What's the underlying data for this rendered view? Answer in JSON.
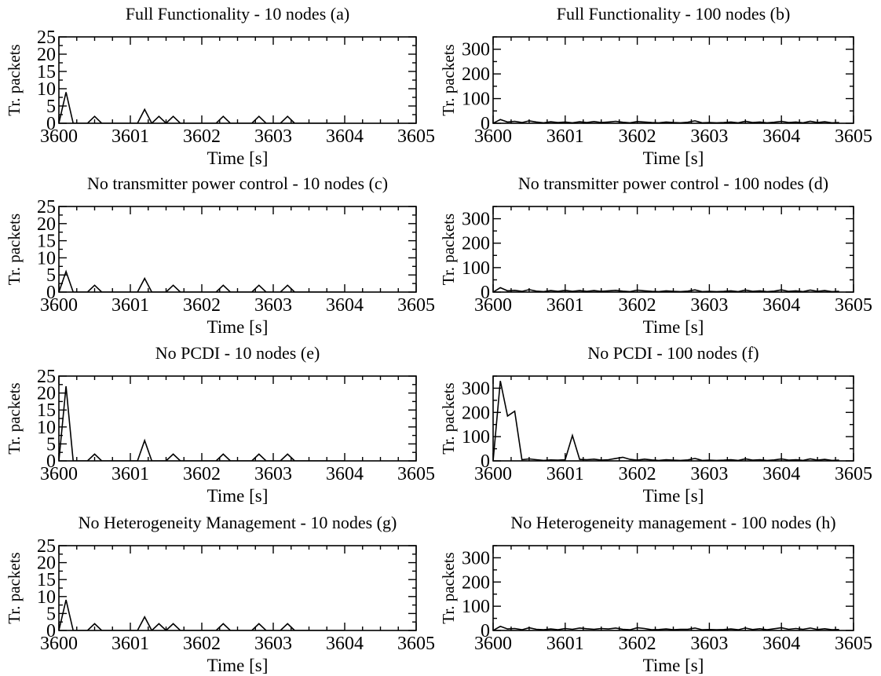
{
  "chart_data": [
    {
      "type": "line",
      "title": "Full Functionality - 10 nodes (a)",
      "xlabel": "Time [s]",
      "ylabel": "Tr. packets",
      "xlim": [
        3600,
        3605
      ],
      "ylim": [
        0,
        25
      ],
      "xticks": [
        3600,
        3601,
        3602,
        3603,
        3604,
        3605
      ],
      "yticks": [
        0,
        5,
        10,
        15,
        20,
        25
      ],
      "x": [
        3600,
        3600.1,
        3600.2,
        3600.4,
        3600.5,
        3600.6,
        3601.1,
        3601.2,
        3601.3,
        3601.4,
        3601.5,
        3601.6,
        3601.7,
        3602.2,
        3602.3,
        3602.4,
        3602.7,
        3602.8,
        3602.9,
        3603.1,
        3603.2,
        3603.3,
        3604
      ],
      "series": [
        {
          "values": [
            0,
            9,
            0,
            0,
            2,
            0,
            0,
            4,
            0,
            2,
            0,
            2,
            0,
            0,
            2,
            0,
            0,
            2,
            0,
            0,
            2,
            0,
            0
          ]
        }
      ]
    },
    {
      "type": "line",
      "title": "Full Functionality - 100 nodes (b)",
      "xlabel": "Time [s]",
      "ylabel": "Tr. packets",
      "xlim": [
        3600,
        3605
      ],
      "ylim": [
        0,
        350
      ],
      "xticks": [
        3600,
        3601,
        3602,
        3603,
        3604,
        3605
      ],
      "yticks": [
        0,
        100,
        200,
        300
      ],
      "x": [
        3600,
        3600.1,
        3600.2,
        3600.3,
        3600.4,
        3600.5,
        3600.6,
        3600.7,
        3600.8,
        3600.9,
        3601,
        3601.1,
        3601.2,
        3601.3,
        3601.4,
        3601.5,
        3601.6,
        3601.7,
        3601.8,
        3601.9,
        3602,
        3602.1,
        3602.2,
        3602.3,
        3602.4,
        3602.5,
        3602.6,
        3602.7,
        3602.8,
        3602.9,
        3603,
        3603.1,
        3603.2,
        3603.3,
        3603.4,
        3603.5,
        3603.6,
        3603.7,
        3603.8,
        3603.9,
        3604,
        3604.1,
        3604.2,
        3604.3,
        3604.4,
        3604.5,
        3604.6,
        3604.7,
        3604.8
      ],
      "series": [
        {
          "values": [
            0,
            15,
            5,
            8,
            3,
            10,
            5,
            2,
            6,
            3,
            5,
            2,
            6,
            3,
            7,
            3,
            5,
            8,
            4,
            2,
            7,
            5,
            3,
            2,
            5,
            3,
            2,
            4,
            10,
            2,
            3,
            2,
            3,
            5,
            2,
            8,
            3,
            5,
            2,
            4,
            8,
            3,
            5,
            2,
            8,
            3,
            6,
            2,
            3
          ]
        }
      ]
    },
    {
      "type": "line",
      "title": "No transmitter power control - 10 nodes (c)",
      "xlabel": "Time [s]",
      "ylabel": "Tr. packets",
      "xlim": [
        3600,
        3605
      ],
      "ylim": [
        0,
        25
      ],
      "xticks": [
        3600,
        3601,
        3602,
        3603,
        3604,
        3605
      ],
      "yticks": [
        0,
        5,
        10,
        15,
        20,
        25
      ],
      "x": [
        3600,
        3600.1,
        3600.2,
        3600.4,
        3600.5,
        3600.6,
        3601.1,
        3601.2,
        3601.3,
        3601.5,
        3601.6,
        3601.7,
        3602.2,
        3602.3,
        3602.4,
        3602.7,
        3602.8,
        3602.9,
        3603.1,
        3603.2,
        3603.3,
        3604
      ],
      "series": [
        {
          "values": [
            0,
            6,
            0,
            0,
            2,
            0,
            0,
            4,
            0,
            0,
            2,
            0,
            0,
            2,
            0,
            0,
            2,
            0,
            0,
            2,
            0,
            0
          ]
        }
      ]
    },
    {
      "type": "line",
      "title": "No transmitter power control - 100 nodes (d)",
      "xlabel": "Time [s]",
      "ylabel": "Tr. packets",
      "xlim": [
        3600,
        3605
      ],
      "ylim": [
        0,
        350
      ],
      "xticks": [
        3600,
        3601,
        3602,
        3603,
        3604,
        3605
      ],
      "yticks": [
        0,
        100,
        200,
        300
      ],
      "x": [
        3600,
        3600.1,
        3600.2,
        3600.3,
        3600.4,
        3600.5,
        3600.6,
        3600.7,
        3600.8,
        3600.9,
        3601,
        3601.1,
        3601.2,
        3601.3,
        3601.4,
        3601.5,
        3601.6,
        3601.7,
        3601.8,
        3601.9,
        3602,
        3602.1,
        3602.2,
        3602.3,
        3602.4,
        3602.5,
        3602.6,
        3602.7,
        3602.8,
        3602.9,
        3603,
        3603.1,
        3603.2,
        3603.3,
        3603.4,
        3603.5,
        3603.6,
        3603.7,
        3603.8,
        3603.9,
        3604,
        3604.1,
        3604.2,
        3604.3,
        3604.4,
        3604.5,
        3604.6,
        3604.7,
        3604.8
      ],
      "series": [
        {
          "values": [
            0,
            18,
            5,
            7,
            3,
            10,
            4,
            2,
            6,
            3,
            7,
            3,
            6,
            3,
            6,
            3,
            5,
            7,
            4,
            2,
            8,
            5,
            3,
            2,
            5,
            3,
            2,
            4,
            9,
            2,
            3,
            2,
            3,
            5,
            2,
            8,
            3,
            5,
            2,
            4,
            9,
            3,
            5,
            2,
            8,
            3,
            6,
            2,
            3
          ]
        }
      ]
    },
    {
      "type": "line",
      "title": "No PCDI - 10 nodes (e)",
      "xlabel": "Time [s]",
      "ylabel": "Tr. packets",
      "xlim": [
        3600,
        3605
      ],
      "ylim": [
        0,
        25
      ],
      "xticks": [
        3600,
        3601,
        3602,
        3603,
        3604,
        3605
      ],
      "yticks": [
        0,
        5,
        10,
        15,
        20,
        25
      ],
      "x": [
        3600,
        3600.1,
        3600.2,
        3600.4,
        3600.5,
        3600.6,
        3601.1,
        3601.2,
        3601.3,
        3601.5,
        3601.6,
        3601.7,
        3602.2,
        3602.3,
        3602.4,
        3602.7,
        3602.8,
        3602.9,
        3603.1,
        3603.2,
        3603.3,
        3604
      ],
      "series": [
        {
          "values": [
            0,
            22,
            0,
            0,
            2,
            0,
            0,
            6,
            0,
            0,
            2,
            0,
            0,
            2,
            0,
            0,
            2,
            0,
            0,
            2,
            0,
            0
          ]
        }
      ]
    },
    {
      "type": "line",
      "title": "No PCDI - 100 nodes (f)",
      "xlabel": "Time [s]",
      "ylabel": "Tr. packets",
      "xlim": [
        3600,
        3605
      ],
      "ylim": [
        0,
        350
      ],
      "xticks": [
        3600,
        3601,
        3602,
        3603,
        3604,
        3605
      ],
      "yticks": [
        0,
        100,
        200,
        300
      ],
      "x": [
        3600,
        3600.1,
        3600.2,
        3600.3,
        3600.4,
        3600.5,
        3600.6,
        3600.7,
        3600.8,
        3600.9,
        3601,
        3601.1,
        3601.2,
        3601.3,
        3601.4,
        3601.5,
        3601.6,
        3601.7,
        3601.8,
        3601.9,
        3602,
        3602.1,
        3602.2,
        3602.3,
        3602.4,
        3602.5,
        3602.6,
        3602.7,
        3602.8,
        3602.9,
        3603,
        3603.1,
        3603.2,
        3603.3,
        3603.4,
        3603.5,
        3603.6,
        3603.7,
        3603.8,
        3603.9,
        3604,
        3604.1,
        3604.2,
        3604.3,
        3604.4,
        3604.5,
        3604.6,
        3604.7,
        3604.8
      ],
      "series": [
        {
          "values": [
            0,
            330,
            185,
            205,
            5,
            8,
            5,
            2,
            4,
            3,
            5,
            105,
            6,
            5,
            7,
            3,
            5,
            10,
            15,
            6,
            3,
            7,
            4,
            2,
            5,
            3,
            2,
            4,
            10,
            2,
            3,
            2,
            3,
            5,
            2,
            8,
            3,
            5,
            2,
            4,
            8,
            3,
            5,
            2,
            8,
            3,
            6,
            2,
            3
          ]
        }
      ]
    },
    {
      "type": "line",
      "title": "No Heterogeneity Management - 10 nodes (g)",
      "xlabel": "Time [s]",
      "ylabel": "Tr. packets",
      "xlim": [
        3600,
        3605
      ],
      "ylim": [
        0,
        25
      ],
      "xticks": [
        3600,
        3601,
        3602,
        3603,
        3604,
        3605
      ],
      "yticks": [
        0,
        5,
        10,
        15,
        20,
        25
      ],
      "x": [
        3600,
        3600.1,
        3600.2,
        3600.4,
        3600.5,
        3600.6,
        3601.1,
        3601.2,
        3601.3,
        3601.4,
        3601.5,
        3601.6,
        3601.7,
        3602.2,
        3602.3,
        3602.4,
        3602.7,
        3602.8,
        3602.9,
        3603.1,
        3603.2,
        3603.3,
        3604
      ],
      "series": [
        {
          "values": [
            0,
            9,
            0,
            0,
            2,
            0,
            0,
            4,
            0,
            2,
            0,
            2,
            0,
            0,
            2,
            0,
            0,
            2,
            0,
            0,
            2,
            0,
            0
          ]
        }
      ]
    },
    {
      "type": "line",
      "title": "No Heterogeneity management - 100 nodes (h)",
      "xlabel": "Time [s]",
      "ylabel": "Tr. packets",
      "xlim": [
        3600,
        3605
      ],
      "ylim": [
        0,
        350
      ],
      "xticks": [
        3600,
        3601,
        3602,
        3603,
        3604,
        3605
      ],
      "yticks": [
        0,
        100,
        200,
        300
      ],
      "x": [
        3600,
        3600.1,
        3600.2,
        3600.3,
        3600.4,
        3600.5,
        3600.6,
        3600.7,
        3600.8,
        3600.9,
        3601,
        3601.1,
        3601.2,
        3601.3,
        3601.4,
        3601.5,
        3601.6,
        3601.7,
        3601.8,
        3601.9,
        3602,
        3602.1,
        3602.2,
        3602.3,
        3602.4,
        3602.5,
        3602.6,
        3602.7,
        3602.8,
        3602.9,
        3603,
        3603.1,
        3603.2,
        3603.3,
        3603.4,
        3603.5,
        3603.6,
        3603.7,
        3603.8,
        3603.9,
        3604,
        3604.1,
        3604.2,
        3604.3,
        3604.4,
        3604.5,
        3604.6,
        3604.7,
        3604.8
      ],
      "series": [
        {
          "values": [
            0,
            17,
            6,
            8,
            3,
            11,
            5,
            3,
            6,
            3,
            8,
            5,
            10,
            7,
            5,
            8,
            6,
            10,
            5,
            3,
            11,
            8,
            3,
            4,
            6,
            3,
            5,
            5,
            10,
            3,
            4,
            3,
            4,
            6,
            3,
            10,
            4,
            7,
            3,
            7,
            11,
            5,
            8,
            5,
            10,
            4,
            7,
            3,
            4
          ]
        }
      ]
    }
  ]
}
